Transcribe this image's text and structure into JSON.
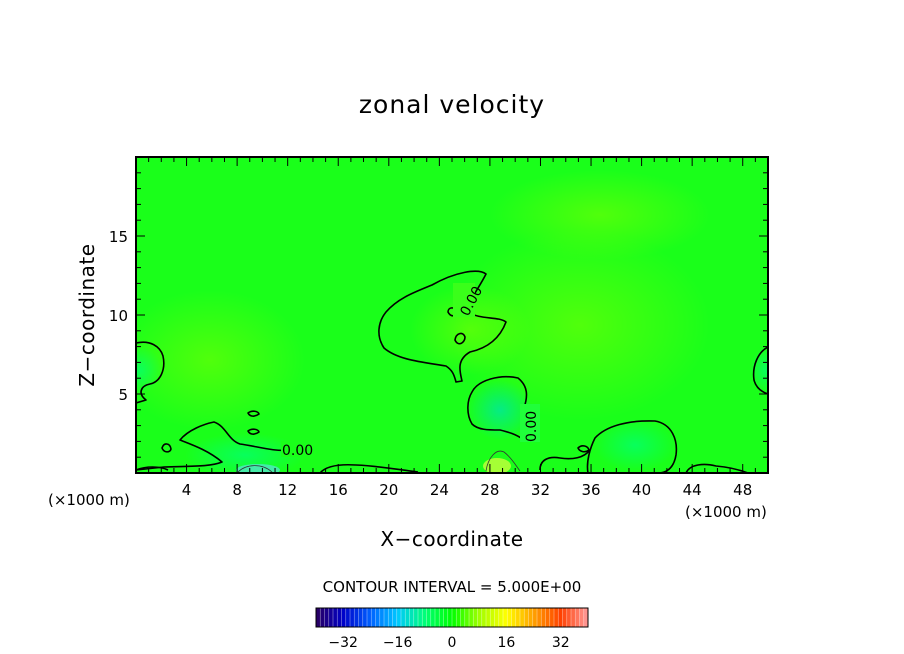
{
  "chart_data": {
    "type": "heatmap",
    "title": "zonal velocity",
    "xlabel": "X−coordinate",
    "ylabel": "Z−coordinate",
    "x_unit_left": "(×1000 m)",
    "x_unit_right": "(×1000 m)",
    "xlim": [
      0,
      50
    ],
    "ylim": [
      0,
      20
    ],
    "xticks": [
      4,
      8,
      12,
      16,
      20,
      24,
      28,
      32,
      36,
      40,
      44,
      48
    ],
    "yticks": [
      5,
      10,
      15
    ],
    "xtick_labels": [
      "4",
      "8",
      "12",
      "16",
      "20",
      "24",
      "28",
      "32",
      "36",
      "40",
      "44",
      "48"
    ],
    "ytick_labels": [
      "5",
      "10",
      "15"
    ],
    "contour_interval_text": "CONTOUR INTERVAL = 5.000E+00",
    "contour_levels": [
      0
    ],
    "contour_labels": [
      "0.00",
      "0.00",
      "0.00"
    ],
    "field_range_approx": [
      -3,
      3
    ],
    "field_description": "values near zero everywhere; weak positive maxima near (6,7), (35,9), (28,8) and weak negatives near the surface",
    "colorbar": {
      "min": -40,
      "max": 40,
      "ticks": [
        -32,
        -16,
        0,
        16,
        32
      ],
      "tick_labels": [
        "−32",
        "−16",
        "0",
        "16",
        "32"
      ],
      "colormap": "rainbow",
      "colors": [
        "#2a0060",
        "#0000c8",
        "#0060ff",
        "#00c8ff",
        "#00ff78",
        "#00ff00",
        "#a0ff00",
        "#ffff00",
        "#ffa000",
        "#ff4000",
        "#ff9a9a"
      ]
    }
  }
}
